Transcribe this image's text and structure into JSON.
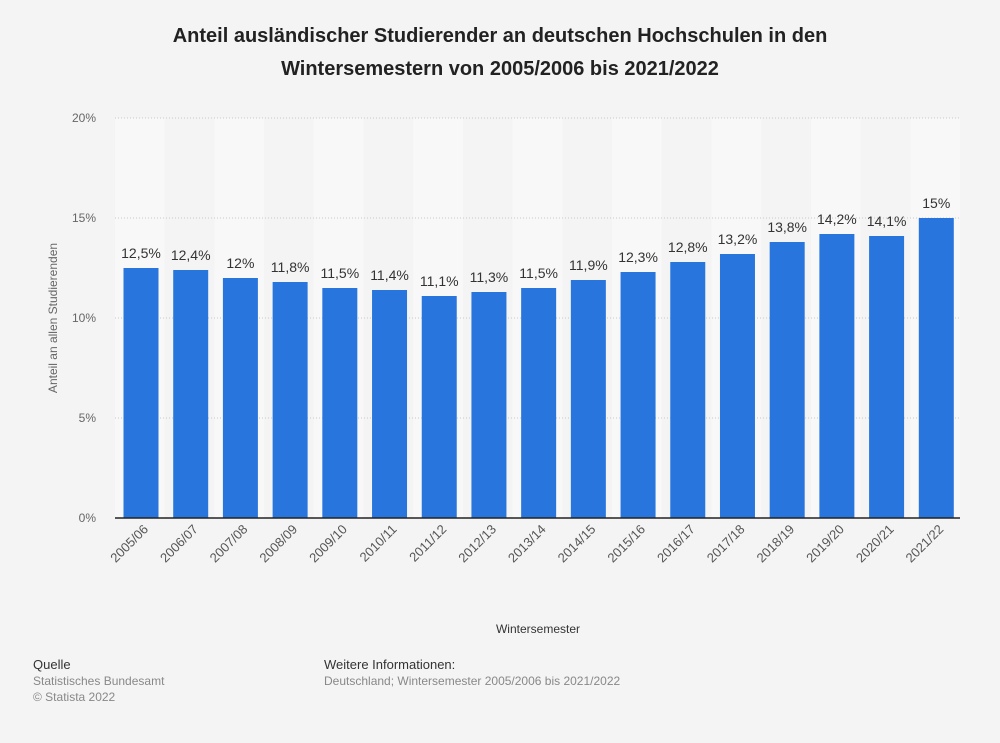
{
  "chart_data": {
    "type": "bar",
    "title": "Anteil ausländischer Studierender an deutschen Hochschulen in den Wintersemestern von 2005/2006 bis 2021/2022",
    "xlabel": "Wintersemester",
    "ylabel": "Anteil an allen Studierenden",
    "ylim": [
      0,
      20
    ],
    "yticks": [
      "0%",
      "5%",
      "10%",
      "15%",
      "20%"
    ],
    "grid": true,
    "bar_color": "#2876dd",
    "categories": [
      "2005/06",
      "2006/07",
      "2007/08",
      "2008/09",
      "2009/10",
      "2010/11",
      "2011/12",
      "2012/13",
      "2013/14",
      "2014/15",
      "2015/16",
      "2016/17",
      "2017/18",
      "2018/19",
      "2019/20",
      "2020/21",
      "2021/22"
    ],
    "values": [
      12.5,
      12.4,
      12,
      11.8,
      11.5,
      11.4,
      11.1,
      11.3,
      11.5,
      11.9,
      12.3,
      12.8,
      13.2,
      13.8,
      14.2,
      14.1,
      15
    ],
    "labels": [
      "12,5%",
      "12,4%",
      "12%",
      "11,8%",
      "11,5%",
      "11,4%",
      "11,1%",
      "11,3%",
      "11,5%",
      "11,9%",
      "12,3%",
      "12,8%",
      "13,2%",
      "13,8%",
      "14,2%",
      "14,1%",
      "15%"
    ]
  },
  "footer": {
    "source_heading": "Quelle",
    "source": "Statistisches Bundesamt",
    "copyright": "© Statista 2022",
    "info_heading": "Weitere Informationen:",
    "info": "Deutschland; Wintersemester 2005/2006 bis 2021/2022"
  }
}
